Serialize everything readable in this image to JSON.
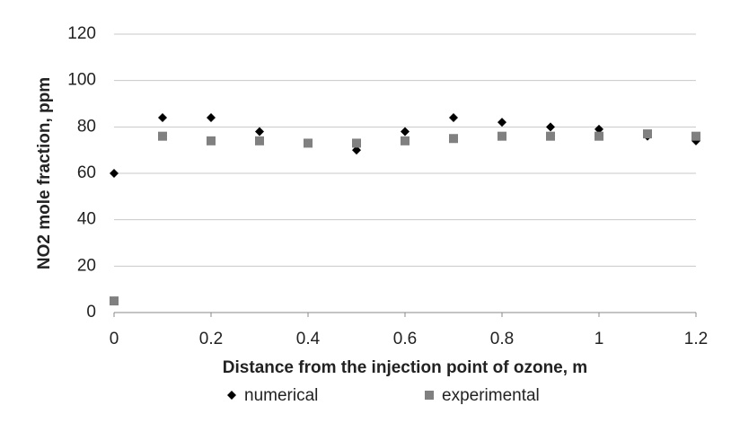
{
  "chart_data": {
    "type": "scatter",
    "x_label": "Distance from the injection point of ozone, m",
    "y_label": "NO2 mole fraction, ppm",
    "series": [
      {
        "name": "numerical",
        "color": "#000000",
        "marker": "diamond",
        "x": [
          0,
          0.1,
          0.2,
          0.3,
          0.5,
          0.6,
          0.7,
          0.8,
          0.9,
          1.0,
          1.1,
          1.2
        ],
        "values": [
          60,
          84,
          84,
          78,
          70,
          78,
          84,
          82,
          80,
          79,
          76,
          74
        ]
      },
      {
        "name": "experimental",
        "color": "#808080",
        "marker": "square",
        "x": [
          0,
          0.1,
          0.2,
          0.3,
          0.4,
          0.5,
          0.6,
          0.7,
          0.8,
          0.9,
          1.0,
          1.1,
          1.2
        ],
        "values": [
          5,
          76,
          74,
          74,
          73,
          73,
          74,
          75,
          76,
          76,
          76,
          77,
          76
        ]
      }
    ],
    "xlim": [
      0,
      1.2
    ],
    "xticks": [
      0,
      0.2,
      0.4,
      0.6,
      0.8,
      1,
      1.2
    ],
    "ylim": [
      0,
      120
    ],
    "yticks": [
      0,
      20,
      40,
      60,
      80,
      100,
      120
    ],
    "grid": true,
    "legend": "bottom"
  }
}
